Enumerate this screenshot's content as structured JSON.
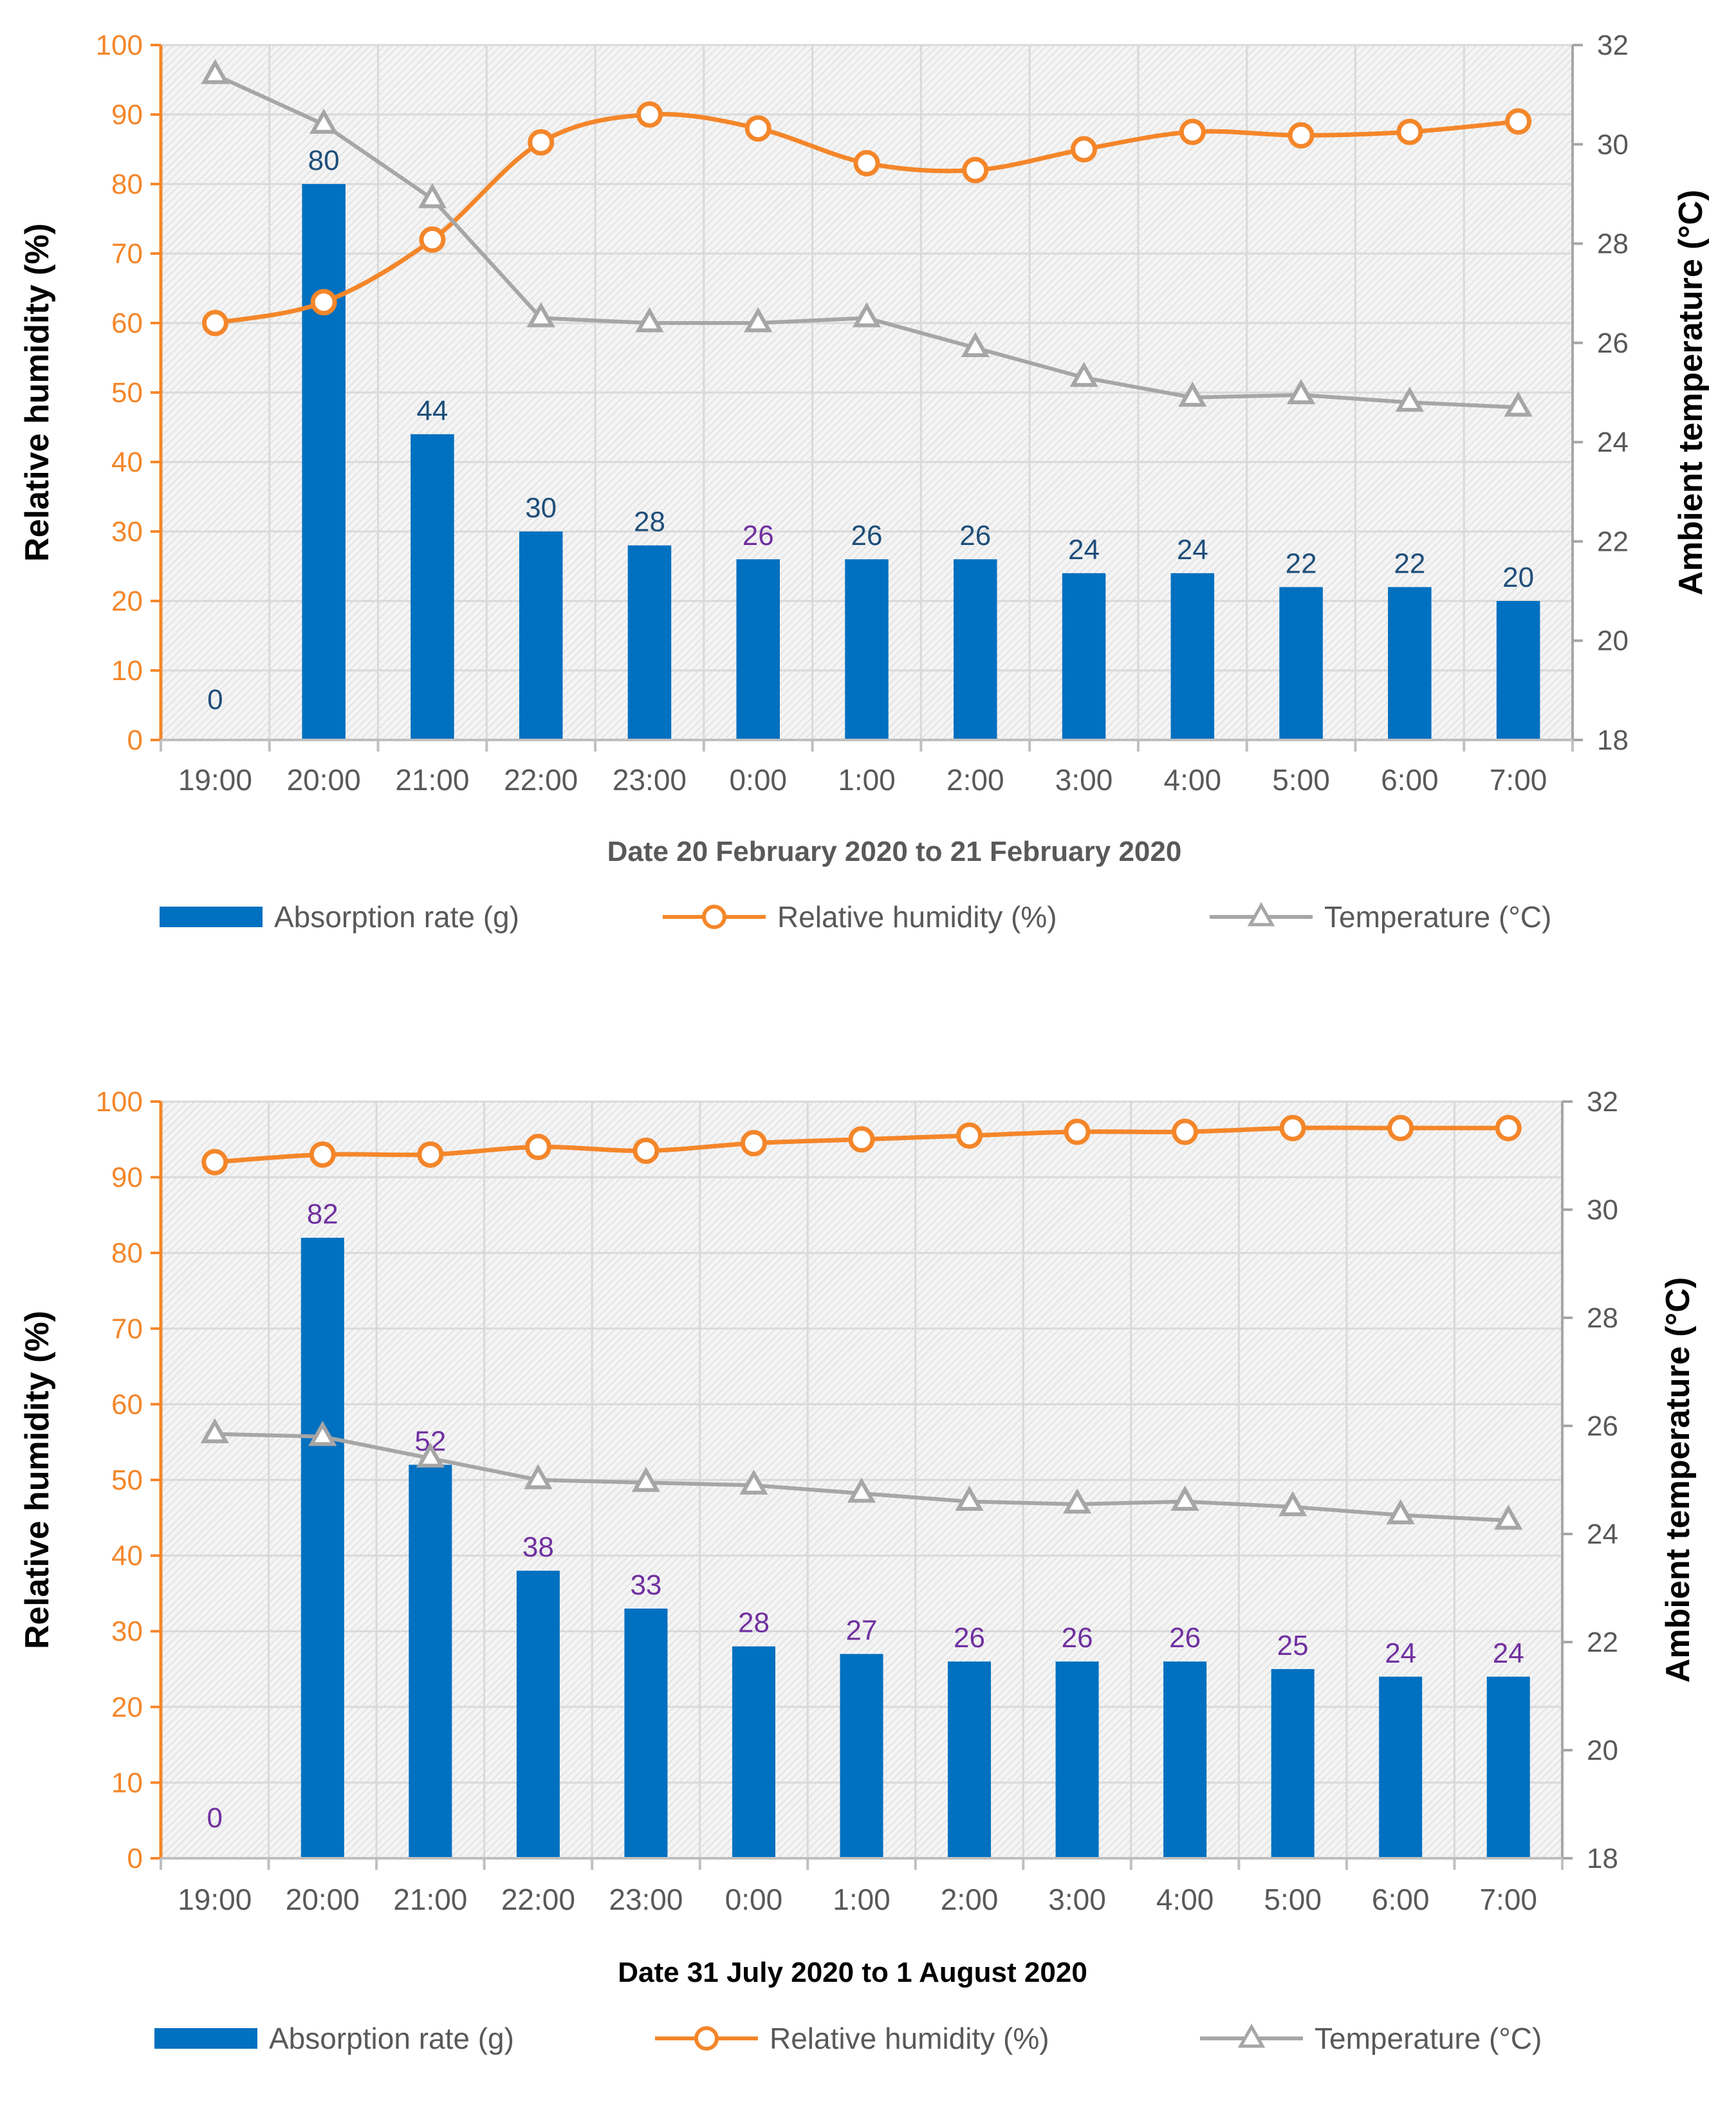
{
  "chart_data": [
    {
      "type": "bar+line",
      "title": "",
      "categories": [
        "19:00",
        "20:00",
        "21:00",
        "22:00",
        "23:00",
        "0:00",
        "1:00",
        "2:00",
        "3:00",
        "4:00",
        "5:00",
        "6:00",
        "7:00"
      ],
      "xlabel": "Date 20 February 2020 to 21 February 2020",
      "ylabel": "Relative humidity (%)",
      "y2label": "Ambient temperature (°C)",
      "ylim": [
        0,
        100
      ],
      "y_ticks": [
        "0",
        "10",
        "20",
        "30",
        "40",
        "50",
        "60",
        "70",
        "80",
        "90",
        "100"
      ],
      "y2lim": [
        18,
        32
      ],
      "y2_ticks": [
        "18",
        "20",
        "22",
        "24",
        "26",
        "28",
        "30",
        "32"
      ],
      "grid": true,
      "legend_position": "bottom",
      "series": [
        {
          "name": "Absorption rate (g)",
          "type": "bar",
          "axis": "left",
          "color": "#0070C0",
          "values": [
            0,
            80,
            44,
            30,
            28,
            26,
            26,
            26,
            24,
            24,
            22,
            22,
            20
          ],
          "labels": [
            "0",
            "80",
            "44",
            "30",
            "28",
            "26",
            "26",
            "26",
            "24",
            "24",
            "22",
            "22",
            "20"
          ],
          "label_colors": [
            "#1F4E79",
            "#1F4E79",
            "#1F4E79",
            "#1F4E79",
            "#1F4E79",
            "#7030A0",
            "#1F4E79",
            "#1F4E79",
            "#1F4E79",
            "#1F4E79",
            "#1F4E79",
            "#1F4E79",
            "#1F4E79"
          ]
        },
        {
          "name": "Relative humidity (%)",
          "type": "line",
          "axis": "left",
          "color": "#F4862A",
          "marker": "circle",
          "values": [
            60,
            63,
            72,
            86,
            90,
            88,
            83,
            82,
            85,
            87.5,
            87,
            87.5,
            89
          ]
        },
        {
          "name": "Temperature (°C)",
          "type": "line",
          "axis": "right",
          "color": "#A6A6A6",
          "marker": "triangle",
          "values": [
            31.4,
            30.4,
            28.9,
            26.5,
            26.4,
            26.4,
            26.5,
            25.9,
            25.3,
            24.9,
            24.95,
            24.8,
            24.7
          ]
        }
      ]
    },
    {
      "type": "bar+line",
      "title": "",
      "categories": [
        "19:00",
        "20:00",
        "21:00",
        "22:00",
        "23:00",
        "0:00",
        "1:00",
        "2:00",
        "3:00",
        "4:00",
        "5:00",
        "6:00",
        "7:00"
      ],
      "xlabel": "Date 31 July 2020 to 1 August 2020",
      "ylabel": "Relative humidity (%)",
      "y2label": "Ambient temperature (°C)",
      "ylim": [
        0,
        100
      ],
      "y_ticks": [
        "0",
        "10",
        "20",
        "30",
        "40",
        "50",
        "60",
        "70",
        "80",
        "90",
        "100"
      ],
      "y2lim": [
        18,
        32
      ],
      "y2_ticks": [
        "18",
        "20",
        "22",
        "24",
        "26",
        "28",
        "30",
        "32"
      ],
      "grid": true,
      "legend_position": "bottom",
      "series": [
        {
          "name": "Absorption rate (g)",
          "type": "bar",
          "axis": "left",
          "color": "#0070C0",
          "values": [
            0,
            82,
            52,
            38,
            33,
            28,
            27,
            26,
            26,
            26,
            25,
            24,
            24
          ],
          "labels": [
            "0",
            "82",
            "52",
            "38",
            "33",
            "28",
            "27",
            "26",
            "26",
            "26",
            "25",
            "24",
            "24"
          ],
          "label_colors": [
            "#7030A0",
            "#7030A0",
            "#7030A0",
            "#7030A0",
            "#7030A0",
            "#7030A0",
            "#7030A0",
            "#7030A0",
            "#7030A0",
            "#7030A0",
            "#7030A0",
            "#7030A0",
            "#7030A0"
          ]
        },
        {
          "name": "Relative humidity (%)",
          "type": "line",
          "axis": "left",
          "color": "#F4862A",
          "marker": "circle",
          "values": [
            92,
            93,
            93,
            94,
            93.5,
            94.5,
            95,
            95.5,
            96,
            96,
            96.5,
            96.5,
            96.5
          ]
        },
        {
          "name": "Temperature (°C)",
          "type": "line",
          "axis": "right",
          "color": "#A6A6A6",
          "marker": "triangle",
          "values": [
            25.85,
            25.8,
            25.4,
            25.0,
            24.95,
            24.9,
            24.75,
            24.6,
            24.55,
            24.6,
            24.5,
            24.35,
            24.25
          ]
        }
      ]
    }
  ],
  "colors": {
    "left_axis": "#F4862A",
    "right_axis": "#A6A6A6",
    "axis_text": "#595959",
    "plot_background": "#F2F2F2",
    "grid": "#D9D9D9"
  }
}
